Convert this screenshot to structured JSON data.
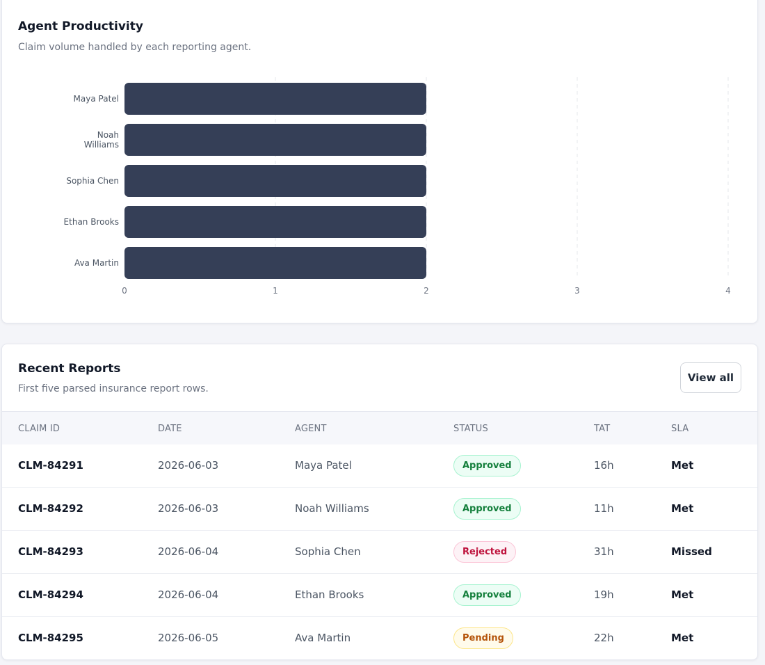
{
  "productivity": {
    "title": "Agent Productivity",
    "subtitle": "Claim volume handled by each reporting agent."
  },
  "chart_data": {
    "type": "bar",
    "orientation": "horizontal",
    "categories": [
      [
        "Maya Patel"
      ],
      [
        "Noah",
        "Williams"
      ],
      [
        "Sophia Chen"
      ],
      [
        "Ethan Brooks"
      ],
      [
        "Ava Martin"
      ]
    ],
    "values": [
      2,
      2,
      2,
      2,
      2
    ],
    "xlim": [
      0,
      4
    ],
    "xticks": [
      0,
      1,
      2,
      3,
      4
    ],
    "grid": true,
    "bar_color": "#353f57"
  },
  "reports": {
    "title": "Recent Reports",
    "subtitle": "First five parsed insurance report rows.",
    "view_all_label": "View all",
    "columns": [
      "CLAIM ID",
      "DATE",
      "AGENT",
      "STATUS",
      "TAT",
      "SLA"
    ],
    "rows": [
      {
        "claim": "CLM-84291",
        "date": "2026-06-03",
        "agent": "Maya Patel",
        "status": "Approved",
        "status_kind": "approved",
        "tat": "16h",
        "sla": "Met"
      },
      {
        "claim": "CLM-84292",
        "date": "2026-06-03",
        "agent": "Noah Williams",
        "status": "Approved",
        "status_kind": "approved",
        "tat": "11h",
        "sla": "Met"
      },
      {
        "claim": "CLM-84293",
        "date": "2026-06-04",
        "agent": "Sophia Chen",
        "status": "Rejected",
        "status_kind": "rejected",
        "tat": "31h",
        "sla": "Missed"
      },
      {
        "claim": "CLM-84294",
        "date": "2026-06-04",
        "agent": "Ethan Brooks",
        "status": "Approved",
        "status_kind": "approved",
        "tat": "19h",
        "sla": "Met"
      },
      {
        "claim": "CLM-84295",
        "date": "2026-06-05",
        "agent": "Ava Martin",
        "status": "Pending",
        "status_kind": "pending",
        "tat": "22h",
        "sla": "Met"
      }
    ]
  }
}
